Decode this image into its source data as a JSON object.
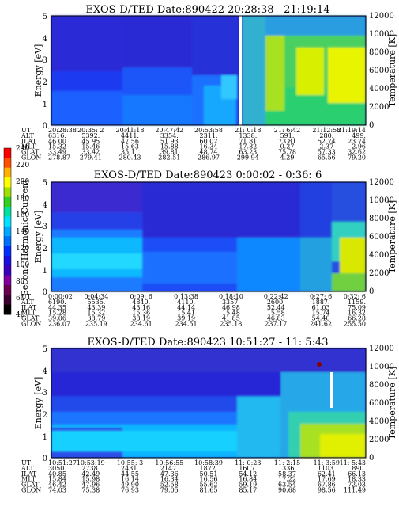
{
  "colorbar": {
    "label": "Second Harmonic Current",
    "ticks": [
      "40",
      "60",
      "80",
      "100",
      "120",
      "140",
      "160",
      "180",
      "200",
      "220",
      "240"
    ],
    "colors": [
      "#000000",
      "#3a0030",
      "#6a0050",
      "#8000a0",
      "#3a00c0",
      "#1a10e0",
      "#0030ff",
      "#0070ff",
      "#00a8ff",
      "#00e0ff",
      "#00e0a0",
      "#30d020",
      "#a0e000",
      "#ffff00",
      "#ffb000",
      "#ff5000",
      "#ff0000"
    ]
  },
  "chart_data": [
    {
      "type": "heatmap",
      "title": "EXOS-D/TED   Date:890422   20:28:38 - 21:19:14",
      "ylabel": "Energy [eV]",
      "y2label": "Temperature [K]",
      "ylim": [
        0,
        5
      ],
      "y2lim": [
        0,
        12000
      ],
      "yticks": [
        "0",
        "1",
        "2",
        "3",
        "4",
        "5"
      ],
      "y2ticks": [
        "0",
        "2000",
        "4000",
        "6000",
        "8000",
        "10000",
        "12000"
      ],
      "eph_labels": [
        "UT",
        "ALT",
        "ILAT",
        "MLT",
        "GLAT",
        "GLON"
      ],
      "eph_columns": [
        [
          "20:28:38",
          "6316.",
          "46.00",
          "15.32",
          "33.49",
          "278.87"
        ],
        [
          "20:35: 2",
          "5392.",
          "45.95",
          "15.46",
          "33.42",
          "279.41"
        ],
        [
          "20:41:18",
          "4411.",
          "47.56",
          "15.63",
          "35.11",
          "280.43"
        ],
        [
          "20:47:42",
          "3354.",
          "51.93",
          "15.88",
          "39.81",
          "282.51"
        ],
        [
          "20:53:58",
          "2311.",
          "60.02",
          "16.34",
          "48.74",
          "286.97"
        ],
        [
          "21: 0:18",
          "1338.",
          "71.81",
          "17.82",
          "63.23",
          "299.94"
        ],
        [
          "21: 6:42",
          "591.",
          "73.81",
          "0.27",
          "75.78",
          "4.29"
        ],
        [
          "21:12:58",
          "280.",
          "52.74",
          "2.37",
          "57.33",
          "65.56"
        ],
        [
          "21:19:14",
          "499.",
          "23.74",
          "2.96",
          "32.62",
          "79.20"
        ]
      ]
    },
    {
      "type": "heatmap",
      "title": "EXOS-D/TED   Date:890423   0:00:02 - 0:36: 6",
      "ylabel": "Energy [eV]",
      "y2label": "Temperature [K]",
      "ylim": [
        0,
        5
      ],
      "y2lim": [
        0,
        12000
      ],
      "yticks": [
        "0",
        "1",
        "2",
        "3",
        "4",
        "5"
      ],
      "y2ticks": [
        "0",
        "2000",
        "4000",
        "6000",
        "8000",
        "10000",
        "12000"
      ],
      "eph_labels": [
        "UT",
        "ALT",
        "ILAT",
        "MLT",
        "GLAT",
        "GLON"
      ],
      "eph_columns": [
        [
          "0:00:02",
          "6190.",
          "44.35",
          "15.28",
          "39.06",
          "236.07"
        ],
        [
          "0:04:34",
          "5535.",
          "43.39",
          "15.32",
          "38.79",
          "235.19"
        ],
        [
          "0:09: 6",
          "4840.",
          "43.16",
          "15.36",
          "38.19",
          "234.61"
        ],
        [
          "0:13:38",
          "4110.",
          "44.14",
          "15.41",
          "39.19",
          "234.51"
        ],
        [
          "0:18:10",
          "3357.",
          "46.98",
          "15.48",
          "41.85",
          "235.18"
        ],
        [
          "0:22:42",
          "2600.",
          "52.44",
          "15.58",
          "46.83",
          "237.17"
        ],
        [
          "0:27: 6",
          "1887.",
          "61.03",
          "15.74",
          "54.40",
          "241.62"
        ],
        [
          "0:32: 6",
          "1159.",
          "75.09",
          "16.32",
          "66.28",
          "255.50"
        ]
      ]
    },
    {
      "type": "heatmap",
      "title": "EXOS-D/TED   Date:890423   10:51:27 - 11: 5:43",
      "ylabel": "Energy [eV]",
      "y2label": "Temperature [K]",
      "ylim": [
        0,
        5
      ],
      "y2lim": [
        0,
        12000
      ],
      "yticks": [
        "0",
        "1",
        "2",
        "3",
        "4",
        "5"
      ],
      "y2ticks": [
        "0",
        "2000",
        "4000",
        "6000",
        "8000",
        "10000",
        "12000"
      ],
      "eph_labels": [
        "UT",
        "ALT",
        "ILAT",
        "MLT",
        "GLAT",
        "GLON"
      ],
      "eph_columns": [
        [
          "10:51:27",
          "3050.",
          "40.85",
          "15.84",
          "46.42",
          "74.03"
        ],
        [
          "10:53:19",
          "2738.",
          "42.49",
          "15.98",
          "47.96",
          "75.38"
        ],
        [
          "10:55: 3",
          "2431.",
          "44.55",
          "16.14",
          "49.90",
          "76.93"
        ],
        [
          "10:56:55",
          "2147.",
          "47.36",
          "16.34",
          "52.58",
          "79.05"
        ],
        [
          "10:58:39",
          "1872.",
          "50.51",
          "16.56",
          "55.62",
          "81.65"
        ],
        [
          "11: 0:23",
          "1607.",
          "54.12",
          "16.84",
          "59.19",
          "85.17"
        ],
        [
          "11: 2:15",
          "1336.",
          "58.37",
          "17.22",
          "63.54",
          "90.68"
        ],
        [
          "11: 3:59",
          "1103.",
          "62.41",
          "17.69",
          "67.86",
          "98.56"
        ],
        [
          "11: 5:43",
          "890.",
          "66.13",
          "18.33",
          "72.03",
          "111.49"
        ]
      ]
    }
  ]
}
